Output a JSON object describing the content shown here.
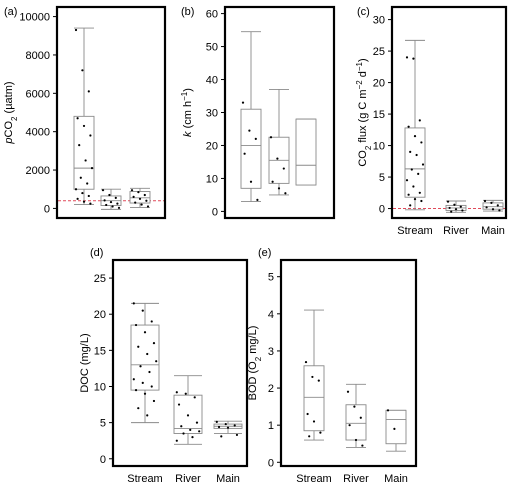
{
  "chart_data": [
    {
      "panel": "(a)",
      "type": "box",
      "categories": [
        "Stream",
        "River",
        "Main"
      ],
      "show_category_labels": false,
      "ylabel_parts": [
        {
          "t": "p",
          "i": true
        },
        {
          "t": "CO"
        },
        {
          "t": "2",
          "sub": true
        },
        {
          "t": " (µatm)"
        }
      ],
      "ylim": [
        -500,
        10500
      ],
      "yticks": [
        0,
        2000,
        4000,
        6000,
        8000,
        10000
      ],
      "reference_line": 400,
      "reference_line_color": "#e04a5a",
      "boxes": [
        {
          "min": 200,
          "q1": 1000,
          "median": 2100,
          "q3": 4800,
          "max": 9400
        },
        {
          "min": -50,
          "q1": 150,
          "median": 400,
          "q3": 650,
          "max": 1000
        },
        {
          "min": 50,
          "q1": 280,
          "median": 550,
          "q3": 880,
          "max": 1050
        }
      ],
      "points": [
        [
          9300,
          7200,
          6100,
          4700,
          4300,
          3800,
          3300,
          2500,
          2100,
          1600,
          1300,
          1000,
          800,
          650,
          500,
          350,
          250
        ],
        [
          950,
          700,
          550,
          420,
          330,
          250,
          180,
          100,
          30
        ],
        [
          950,
          850,
          700,
          600,
          500,
          400,
          300,
          200,
          100
        ]
      ]
    },
    {
      "panel": "(b)",
      "type": "box",
      "categories": [
        "Stream",
        "River",
        "Main"
      ],
      "show_category_labels": false,
      "ylabel_parts": [
        {
          "t": "k",
          "i": true
        },
        {
          "t": " (cm h"
        },
        {
          "t": "−1",
          "sup": true
        },
        {
          "t": ")"
        }
      ],
      "ylim": [
        -2,
        62
      ],
      "yticks": [
        0,
        10,
        20,
        30,
        40,
        50,
        60
      ],
      "boxes": [
        {
          "min": 3,
          "q1": 7,
          "median": 20,
          "q3": 31,
          "max": 54.5
        },
        {
          "min": 5,
          "q1": 8.5,
          "median": 15.5,
          "q3": 22.5,
          "max": 37
        },
        {
          "min": 8,
          "q1": 8,
          "median": 14,
          "q3": 28,
          "max": 28
        }
      ],
      "points": [
        [
          33,
          24.5,
          22,
          17.5,
          9,
          3.5
        ],
        [
          22.5,
          16,
          13,
          9,
          7,
          5.5
        ],
        []
      ]
    },
    {
      "panel": "(c)",
      "type": "box",
      "categories": [
        "Stream",
        "River",
        "Main"
      ],
      "show_category_labels": true,
      "ylabel_parts": [
        {
          "t": "CO"
        },
        {
          "t": "2",
          "sub": true
        },
        {
          "t": " flux (g C m"
        },
        {
          "t": "−2",
          "sup": true
        },
        {
          "t": " d"
        },
        {
          "t": "−1",
          "sup": true
        },
        {
          "t": ")"
        }
      ],
      "ylim": [
        -1.5,
        32
      ],
      "yticks": [
        0,
        5,
        10,
        15,
        20,
        25,
        30
      ],
      "reference_line": 0,
      "reference_line_color": "#e04a5a",
      "boxes": [
        {
          "min": -0.2,
          "q1": 1.8,
          "median": 6.3,
          "q3": 12.8,
          "max": 26.7
        },
        {
          "min": -0.6,
          "q1": -0.3,
          "median": 0.1,
          "q3": 0.5,
          "max": 1.2
        },
        {
          "min": -0.4,
          "q1": -0.1,
          "median": 0.3,
          "q3": 0.9,
          "max": 1.3
        }
      ],
      "points": [
        [
          24,
          23.8,
          14,
          13,
          11.5,
          10.5,
          9,
          8.5,
          7,
          6.2,
          5.5,
          4.5,
          3.5,
          2.5,
          2.2,
          1.5,
          1.2,
          0.5
        ],
        [
          1.1,
          0.6,
          0.3,
          0.1,
          -0.1,
          -0.3,
          -0.5
        ],
        [
          1.2,
          0.9,
          0.5,
          0.2,
          -0.1,
          -0.3
        ]
      ]
    },
    {
      "panel": "(d)",
      "type": "box",
      "categories": [
        "Stream",
        "River",
        "Main"
      ],
      "show_category_labels": true,
      "ylabel_parts": [
        {
          "t": "DOC (mg/L)"
        }
      ],
      "ylim": [
        -1,
        27.5
      ],
      "yticks": [
        0,
        5,
        10,
        15,
        20,
        25
      ],
      "boxes": [
        {
          "min": 5,
          "q1": 9.5,
          "median": 13,
          "q3": 18.5,
          "max": 21.5
        },
        {
          "min": 2,
          "q1": 3.5,
          "median": 4.2,
          "q3": 8.8,
          "max": 11.5
        },
        {
          "min": 3.5,
          "q1": 4.2,
          "median": 4.5,
          "q3": 4.8,
          "max": 5.2
        }
      ],
      "points": [
        [
          21.5,
          20.5,
          19,
          18.5,
          17.5,
          16,
          15.5,
          14.5,
          13.5,
          12.8,
          12,
          11,
          10.5,
          10,
          9.5,
          9,
          8,
          7,
          6
        ],
        [
          9.2,
          9,
          8.5,
          7.5,
          6,
          5,
          4.5,
          4,
          3.8,
          3.5,
          3,
          2.5
        ],
        [
          5.1,
          4.8,
          4.6,
          4.4,
          4.3,
          3.3,
          3.1
        ]
      ]
    },
    {
      "panel": "(e)",
      "type": "box",
      "categories": [
        "Stream",
        "River",
        "Main"
      ],
      "show_category_labels": true,
      "ylabel_parts": [
        {
          "t": "BOD (O"
        },
        {
          "t": "2",
          "sub": true
        },
        {
          "t": " mg/L)"
        }
      ],
      "ylim": [
        -0.1,
        5.45
      ],
      "yticks": [
        0,
        1,
        2,
        3,
        4,
        5
      ],
      "boxes": [
        {
          "min": 0.6,
          "q1": 0.85,
          "median": 1.75,
          "q3": 2.6,
          "max": 4.1
        },
        {
          "min": 0.4,
          "q1": 0.6,
          "median": 1.05,
          "q3": 1.55,
          "max": 2.1
        },
        {
          "min": 0.3,
          "q1": 0.5,
          "median": 1.15,
          "q3": 1.4,
          "max": 1.4
        }
      ],
      "points": [
        [
          2.7,
          2.3,
          2.2,
          1.3,
          1.1,
          0.8,
          0.7
        ],
        [
          1.9,
          1.5,
          1.2,
          1.0,
          0.6,
          0.45
        ],
        [
          1.4,
          0.9
        ]
      ]
    }
  ]
}
